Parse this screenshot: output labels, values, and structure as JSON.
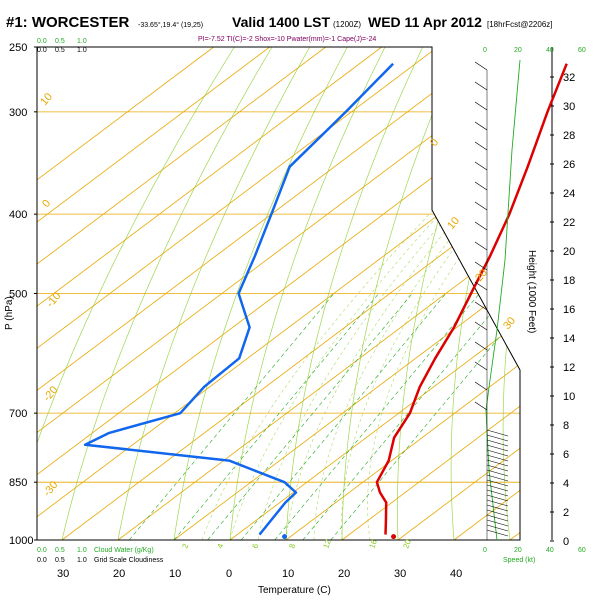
{
  "header": {
    "station": "#1: WORCESTER",
    "coords": "-33.65°,19.4° (19,25)",
    "valid": "Valid 1400 LST",
    "utc": "(1200Z)",
    "date": "WED 11 Apr 2012",
    "model": "[18hrFcst@2206z]",
    "indices": "PI=-7.52 TI(C)=-2 Shox=-10 Pwater(mm)=-1 Cape(J)=-24"
  },
  "colors": {
    "temperature": "#dd0000",
    "dewpoint": "#1166ee",
    "isotherm": "#e8a800",
    "dry_adiabat": "#88cc22",
    "moist_adiabat": "#88cc22",
    "mixing_ratio": "#22aa22",
    "wind_speed": "#22aa22"
  },
  "chart_data": {
    "type": "line",
    "title": "#1: WORCESTER Valid 1400 LST WED 11 Apr 2012",
    "xlabel": "Temperature (C)",
    "ylabel": "P (hPa)",
    "y2label": "Height (1000 Feet)",
    "x_ticks": [
      "0",
      "10",
      "20",
      "30",
      "40"
    ],
    "x_ticks_cloud": [
      "30",
      "20",
      "10"
    ],
    "y_ticks": [
      "250",
      "300",
      "400",
      "500",
      "700",
      "850",
      "1000"
    ],
    "height_ticks": [
      "0",
      "2",
      "4",
      "6",
      "8",
      "10",
      "12",
      "14",
      "16",
      "18",
      "20",
      "22",
      "24",
      "26",
      "28",
      "30",
      "32"
    ],
    "cloud_scale_labels": [
      "0.0",
      "0.5",
      "1.0"
    ],
    "cloud_water_label": "Cloud Water (g/Kg)",
    "grid_cloud_label": "Grid Scale Cloudiness",
    "wind_speed_ticks": [
      "0",
      "20",
      "40",
      "60"
    ],
    "wind_speed_label": "Speed (kt)",
    "isotherm_labels": [
      "10",
      "0",
      "-10",
      "-20",
      "-30",
      "0",
      "10",
      "20",
      "30"
    ],
    "mixing_ratio_labels": [
      "2",
      "4",
      "6",
      "8",
      "12",
      "16",
      "20"
    ],
    "series": [
      {
        "name": "Temperature",
        "points": [
          {
            "p": 262,
            "t": -53.0
          },
          {
            "p": 300,
            "t": -45.0
          },
          {
            "p": 350,
            "t": -35.5
          },
          {
            "p": 400,
            "t": -27.5
          },
          {
            "p": 450,
            "t": -21.0
          },
          {
            "p": 500,
            "t": -15.5
          },
          {
            "p": 550,
            "t": -10.5
          },
          {
            "p": 600,
            "t": -6.5
          },
          {
            "p": 650,
            "t": -2.5
          },
          {
            "p": 700,
            "t": 2.0
          },
          {
            "p": 750,
            "t": 5.0
          },
          {
            "p": 800,
            "t": 9.5
          },
          {
            "p": 850,
            "t": 12.5
          },
          {
            "p": 875,
            "t": 15.5
          },
          {
            "p": 900,
            "t": 19.0
          },
          {
            "p": 950,
            "t": 23.5
          },
          {
            "p": 985,
            "t": 26.5
          }
        ]
      },
      {
        "name": "Dewpoint",
        "points": [
          {
            "p": 262,
            "t": -84.0
          },
          {
            "p": 300,
            "t": -81.0
          },
          {
            "p": 350,
            "t": -78.0
          },
          {
            "p": 400,
            "t": -70.0
          },
          {
            "p": 450,
            "t": -63.0
          },
          {
            "p": 500,
            "t": -57.0
          },
          {
            "p": 550,
            "t": -47.0
          },
          {
            "p": 600,
            "t": -41.5
          },
          {
            "p": 650,
            "t": -41.0
          },
          {
            "p": 700,
            "t": -39.0
          },
          {
            "p": 740,
            "t": -47.0
          },
          {
            "p": 765,
            "t": -48.5
          },
          {
            "p": 800,
            "t": -19.0
          },
          {
            "p": 850,
            "t": -4.0
          },
          {
            "p": 875,
            "t": 0.5
          },
          {
            "p": 900,
            "t": 1.0
          },
          {
            "p": 985,
            "t": 4.0
          }
        ]
      }
    ]
  }
}
